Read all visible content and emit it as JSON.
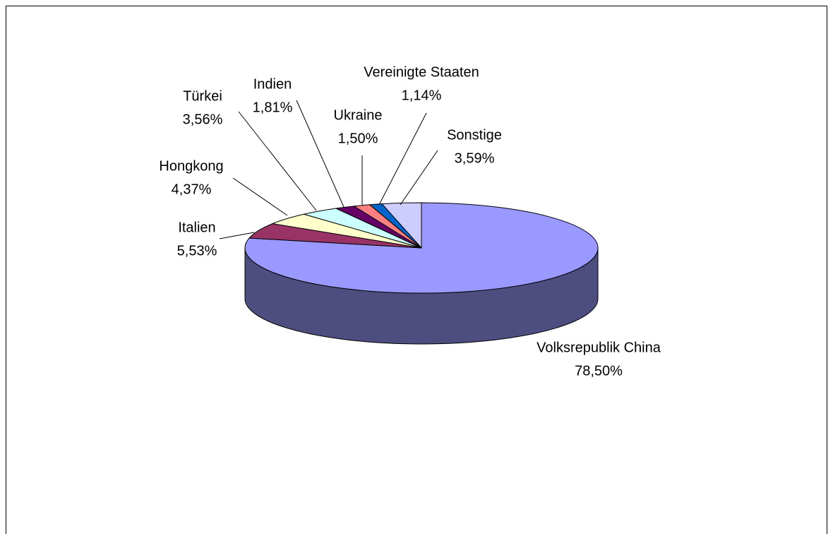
{
  "chart_data": {
    "type": "pie",
    "categories": [
      "Volksrepublik China",
      "Italien",
      "Hongkong",
      "Türkei",
      "Indien",
      "Ukraine",
      "Vereinigte Staaten",
      "Sonstige"
    ],
    "values": [
      78.5,
      5.53,
      4.37,
      3.56,
      1.81,
      1.5,
      1.14,
      3.59
    ],
    "value_labels": [
      "78,50%",
      "5,53%",
      "4,37%",
      "3,56%",
      "1,81%",
      "1,50%",
      "1,14%",
      "3,59%"
    ],
    "colors": [
      "#9999ff",
      "#993366",
      "#ffffcc",
      "#ccffff",
      "#660066",
      "#ff8080",
      "#0066cc",
      "#ccccff"
    ]
  }
}
